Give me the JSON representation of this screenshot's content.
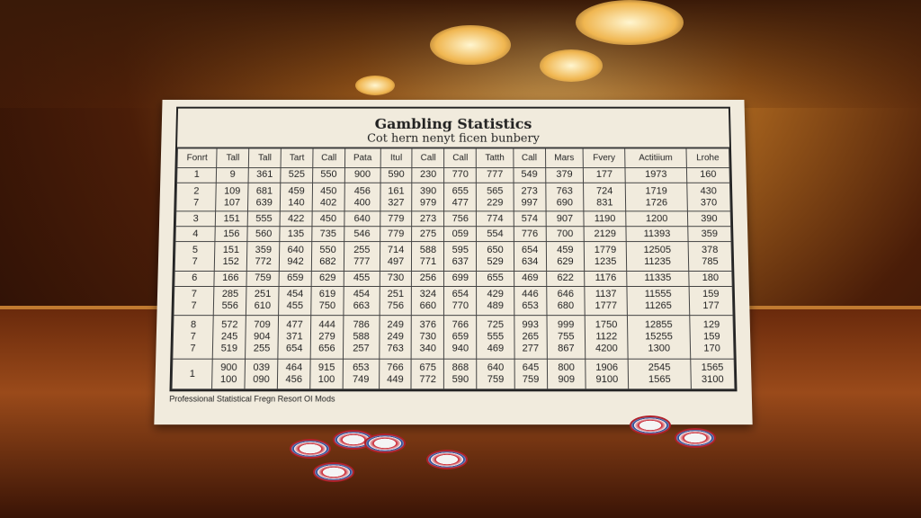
{
  "card": {
    "title": "Gambling Statistics",
    "subtitle": "Cot hern nenyt ficen bunbery",
    "footer": "Professional Statistical Fregn Resort OI Mods",
    "headers": [
      "Fonrt",
      "Tall",
      "Tall",
      "Tart",
      "Call",
      "Pata",
      "Itul",
      "Call",
      "Call",
      "Tatth",
      "Call",
      "Mars",
      "Fvery",
      "Actitiium",
      "Lrohe"
    ],
    "rows": [
      [
        [
          "1"
        ],
        [
          "9"
        ],
        [
          "361"
        ],
        [
          "525"
        ],
        [
          "550"
        ],
        [
          "900"
        ],
        [
          "590"
        ],
        [
          "230"
        ],
        [
          "770"
        ],
        [
          "777"
        ],
        [
          "549"
        ],
        [
          "379"
        ],
        [
          "177"
        ],
        [
          "1973"
        ],
        [
          "160"
        ]
      ],
      [
        [
          "2",
          "7"
        ],
        [
          "109",
          "107"
        ],
        [
          "681",
          "639"
        ],
        [
          "459",
          "140"
        ],
        [
          "450",
          "402"
        ],
        [
          "456",
          "400"
        ],
        [
          "161",
          "327"
        ],
        [
          "390",
          "979"
        ],
        [
          "655",
          "477"
        ],
        [
          "565",
          "229"
        ],
        [
          "273",
          "997"
        ],
        [
          "763",
          "690"
        ],
        [
          "724",
          "831"
        ],
        [
          "1719",
          "1726"
        ],
        [
          "430",
          "370"
        ]
      ],
      [
        [
          "3"
        ],
        [
          "151"
        ],
        [
          "555"
        ],
        [
          "422"
        ],
        [
          "450"
        ],
        [
          "640"
        ],
        [
          "779"
        ],
        [
          "273"
        ],
        [
          "756"
        ],
        [
          "774"
        ],
        [
          "574"
        ],
        [
          "907"
        ],
        [
          "1190"
        ],
        [
          "1200"
        ],
        [
          "390"
        ]
      ],
      [
        [
          "4"
        ],
        [
          "156"
        ],
        [
          "560"
        ],
        [
          "135"
        ],
        [
          "735"
        ],
        [
          "546"
        ],
        [
          "779"
        ],
        [
          "275"
        ],
        [
          "059"
        ],
        [
          "554"
        ],
        [
          "776"
        ],
        [
          "700"
        ],
        [
          "2129"
        ],
        [
          "11393"
        ],
        [
          "359"
        ]
      ],
      [
        [
          "5",
          "7"
        ],
        [
          "151",
          "152"
        ],
        [
          "359",
          "772"
        ],
        [
          "640",
          "942"
        ],
        [
          "550",
          "682"
        ],
        [
          "255",
          "777"
        ],
        [
          "714",
          "497"
        ],
        [
          "588",
          "771"
        ],
        [
          "595",
          "637"
        ],
        [
          "650",
          "529"
        ],
        [
          "654",
          "634"
        ],
        [
          "459",
          "629"
        ],
        [
          "1779",
          "1235"
        ],
        [
          "12505",
          "11235"
        ],
        [
          "378",
          "785"
        ]
      ],
      [
        [
          "6"
        ],
        [
          "166"
        ],
        [
          "759"
        ],
        [
          "659"
        ],
        [
          "629"
        ],
        [
          "455"
        ],
        [
          "730"
        ],
        [
          "256"
        ],
        [
          "699"
        ],
        [
          "655"
        ],
        [
          "469"
        ],
        [
          "622"
        ],
        [
          "1176"
        ],
        [
          "11335"
        ],
        [
          "180"
        ]
      ],
      [
        [
          "7",
          "7"
        ],
        [
          "285",
          "556"
        ],
        [
          "251",
          "610"
        ],
        [
          "454",
          "455"
        ],
        [
          "619",
          "750"
        ],
        [
          "454",
          "663"
        ],
        [
          "251",
          "756"
        ],
        [
          "324",
          "660"
        ],
        [
          "654",
          "770"
        ],
        [
          "429",
          "489"
        ],
        [
          "446",
          "653"
        ],
        [
          "646",
          "680"
        ],
        [
          "1137",
          "1777"
        ],
        [
          "11555",
          "11265"
        ],
        [
          "159",
          "177"
        ]
      ],
      [
        [
          "8",
          "7",
          "7"
        ],
        [
          "572",
          "245",
          "519"
        ],
        [
          "709",
          "904",
          "255"
        ],
        [
          "477",
          "371",
          "654"
        ],
        [
          "444",
          "279",
          "656"
        ],
        [
          "786",
          "588",
          "257"
        ],
        [
          "249",
          "249",
          "763"
        ],
        [
          "376",
          "730",
          "340"
        ],
        [
          "766",
          "659",
          "940"
        ],
        [
          "725",
          "555",
          "469"
        ],
        [
          "993",
          "265",
          "277"
        ],
        [
          "999",
          "755",
          "867"
        ],
        [
          "1750",
          "1122",
          "4200"
        ],
        [
          "12855",
          "15255",
          "1300"
        ],
        [
          "129",
          "159",
          "170"
        ]
      ],
      [
        [
          "1"
        ],
        [
          "900",
          "100"
        ],
        [
          "039",
          "090"
        ],
        [
          "464",
          "456"
        ],
        [
          "915",
          "100"
        ],
        [
          "653",
          "749"
        ],
        [
          "766",
          "449"
        ],
        [
          "675",
          "772"
        ],
        [
          "868",
          "590"
        ],
        [
          "640",
          "759"
        ],
        [
          "645",
          "759"
        ],
        [
          "800",
          "909"
        ],
        [
          "1906",
          "9100"
        ],
        [
          "2545",
          "1565"
        ],
        [
          "1565",
          "3100"
        ]
      ]
    ]
  }
}
